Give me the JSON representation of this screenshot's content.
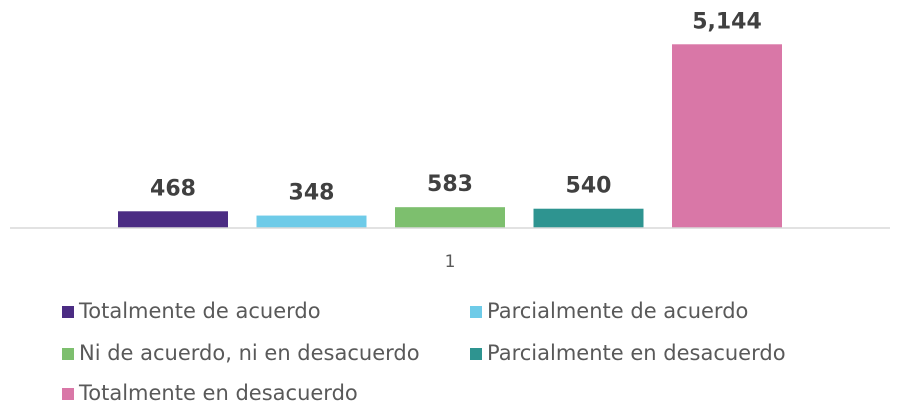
{
  "chart_data": {
    "type": "bar",
    "categories": [
      "1"
    ],
    "series": [
      {
        "name": "Totalmente de acuerdo",
        "color": "#4b2c83",
        "values": [
          468
        ]
      },
      {
        "name": "Parcialmente de acuerdo",
        "color": "#6ecbe8",
        "values": [
          348
        ]
      },
      {
        "name": "Ni de acuerdo, ni en desacuerdo",
        "color": "#7dbf6e",
        "values": [
          583
        ]
      },
      {
        "name": "Parcialmente en desacuerdo",
        "color": "#2e9490",
        "values": [
          540
        ]
      },
      {
        "name": "Totalmente en desacuerdo",
        "color": "#d977a7",
        "values": [
          5144
        ],
        "value_labels": [
          "5,144"
        ]
      }
    ],
    "ylim": [
      0,
      5600
    ],
    "legend": "bottom"
  }
}
